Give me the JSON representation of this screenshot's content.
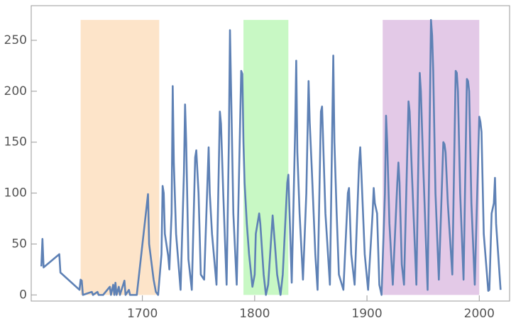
{
  "chart_data": {
    "type": "line",
    "x": [
      1610,
      1611,
      1612,
      1626,
      1627,
      1644,
      1645,
      1646,
      1647,
      1655,
      1656,
      1660,
      1661,
      1665,
      1671,
      1672,
      1674,
      1675,
      1676,
      1677,
      1679,
      1680,
      1684,
      1685,
      1688,
      1689,
      1695,
      1705,
      1706,
      1710,
      1712,
      1714,
      1717,
      1718,
      1719,
      1720,
      1723,
      1724,
      1726,
      1727,
      1728,
      1730,
      1734,
      1737,
      1738,
      1739,
      1741,
      1744,
      1747,
      1748,
      1750,
      1752,
      1755,
      1759,
      1760,
      1762,
      1766,
      1769,
      1770,
      1772,
      1775,
      1777,
      1778,
      1779,
      1781,
      1784,
      1788,
      1789,
      1790,
      1791,
      1793,
      1795,
      1798,
      1800,
      1801,
      1804,
      1805,
      1808,
      1810,
      1812,
      1816,
      1818,
      1820,
      1823,
      1825,
      1829,
      1830,
      1833,
      1836,
      1837,
      1838,
      1840,
      1843,
      1846,
      1848,
      1849,
      1851,
      1854,
      1856,
      1859,
      1860,
      1861,
      1863,
      1867,
      1870,
      1871,
      1873,
      1875,
      1879,
      1883,
      1884,
      1886,
      1889,
      1893,
      1894,
      1895,
      1898,
      1901,
      1905,
      1906,
      1907,
      1909,
      1911,
      1913,
      1916,
      1917,
      1918,
      1920,
      1923,
      1927,
      1928,
      1929,
      1931,
      1933,
      1937,
      1938,
      1940,
      1944,
      1947,
      1948,
      1950,
      1954,
      1957,
      1958,
      1959,
      1961,
      1964,
      1968,
      1969,
      1970,
      1972,
      1976,
      1979,
      1980,
      1981,
      1983,
      1986,
      1989,
      1990,
      1991,
      1993,
      1996,
      2000,
      2001,
      2002,
      2004,
      2008,
      2009,
      2011,
      2013,
      2014,
      2015,
      2019
    ],
    "series": [
      {
        "color": "#5e81b5",
        "values": [
          28,
          55,
          27,
          40,
          22,
          5,
          15,
          14,
          0,
          3,
          0,
          3,
          0,
          0,
          8,
          0,
          10,
          0,
          12,
          0,
          8,
          0,
          14,
          0,
          5,
          0,
          0,
          99,
          50,
          15,
          3,
          0,
          40,
          107,
          100,
          60,
          38,
          25,
          80,
          205,
          130,
          60,
          5,
          120,
          187,
          150,
          35,
          5,
          135,
          142,
          100,
          20,
          15,
          145,
          100,
          60,
          10,
          180,
          168,
          100,
          10,
          150,
          260,
          200,
          80,
          10,
          220,
          217,
          150,
          110,
          70,
          40,
          8,
          20,
          60,
          80,
          70,
          20,
          0,
          10,
          78,
          50,
          20,
          0,
          20,
          110,
          118,
          12,
          160,
          230,
          140,
          80,
          15,
          100,
          210,
          170,
          120,
          40,
          5,
          180,
          185,
          150,
          80,
          10,
          235,
          150,
          80,
          20,
          5,
          100,
          105,
          40,
          10,
          130,
          145,
          120,
          40,
          5,
          80,
          105,
          90,
          80,
          10,
          0,
          100,
          176,
          150,
          70,
          10,
          110,
          130,
          110,
          30,
          10,
          190,
          180,
          120,
          10,
          218,
          200,
          130,
          5,
          270,
          255,
          220,
          100,
          15,
          150,
          148,
          140,
          90,
          20,
          220,
          218,
          200,
          100,
          15,
          212,
          210,
          200,
          90,
          10,
          175,
          170,
          160,
          60,
          4,
          5,
          80,
          90,
          115,
          70,
          5
        ]
      }
    ],
    "regions": [
      {
        "start": 1645,
        "end": 1715,
        "color": "#fde4c9"
      },
      {
        "start": 1790,
        "end": 1830,
        "color": "#c8f8c4"
      },
      {
        "start": 1914,
        "end": 2000,
        "color": "#e3c9e7"
      }
    ],
    "xlim": [
      1601,
      2027
    ],
    "ylim": [
      -6,
      284
    ],
    "xticks": [
      1700,
      1800,
      1900,
      2000
    ],
    "yticks": [
      0,
      50,
      100,
      150,
      200,
      250
    ]
  }
}
